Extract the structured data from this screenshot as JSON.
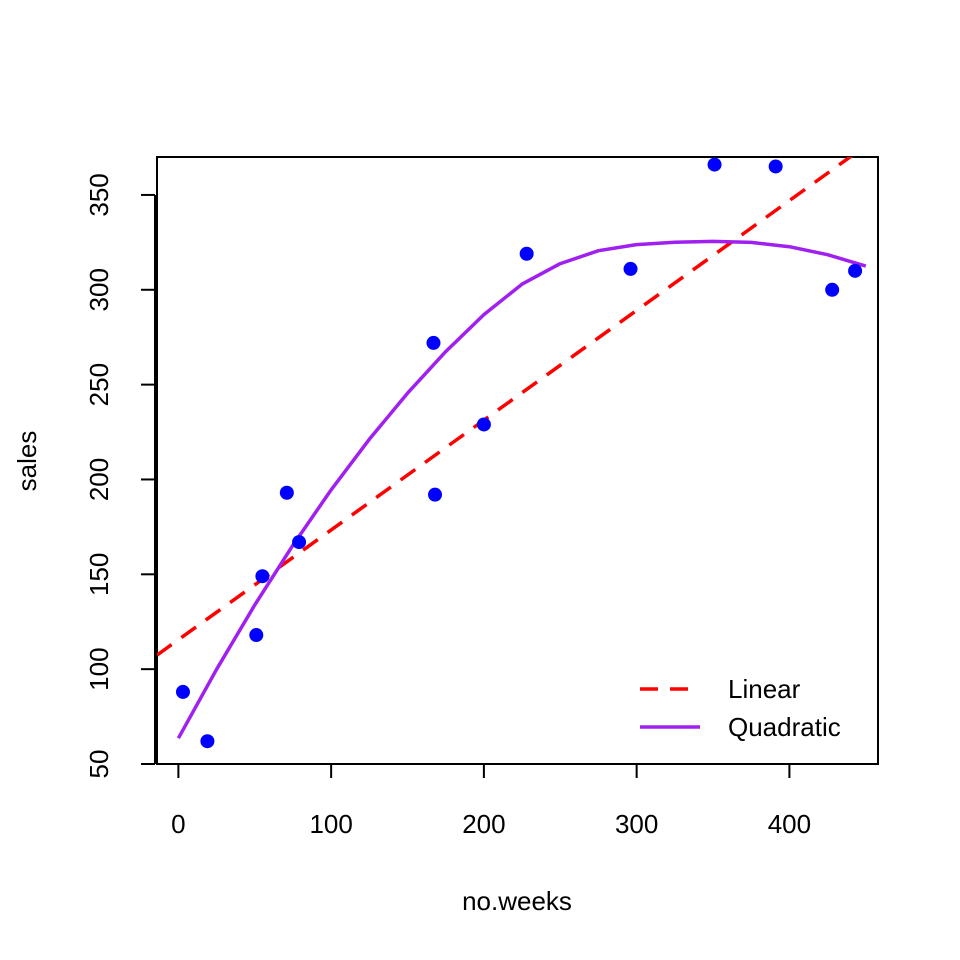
{
  "chart_data": {
    "type": "scatter",
    "title": "",
    "xlabel": "no.weeks",
    "ylabel": "sales",
    "xlim": [
      -14,
      458
    ],
    "ylim": [
      50,
      370
    ],
    "grid": false,
    "x_ticks": [
      {
        "value": 0,
        "label": "0"
      },
      {
        "value": 100,
        "label": "100"
      },
      {
        "value": 200,
        "label": "200"
      },
      {
        "value": 300,
        "label": "300"
      },
      {
        "value": 400,
        "label": "400"
      }
    ],
    "y_ticks": [
      {
        "value": 50,
        "label": "50"
      },
      {
        "value": 100,
        "label": "100"
      },
      {
        "value": 150,
        "label": "150"
      },
      {
        "value": 200,
        "label": "200"
      },
      {
        "value": 250,
        "label": "250"
      },
      {
        "value": 300,
        "label": "300"
      },
      {
        "value": 350,
        "label": "350"
      }
    ],
    "points": {
      "color": "#0000ff",
      "x": [
        3,
        19,
        51,
        55,
        71,
        79,
        167,
        168,
        200,
        228,
        296,
        351,
        391,
        428,
        443
      ],
      "y": [
        88,
        62,
        118,
        149,
        193,
        167,
        272,
        192,
        229,
        319,
        311,
        366,
        365,
        300,
        310
      ]
    },
    "lines": [
      {
        "name": "Linear",
        "color": "#ff0000",
        "dash": "dashed",
        "x": [
          -14,
          458
        ],
        "y": [
          107.4,
          380.6
        ]
      },
      {
        "name": "Quadratic",
        "color": "#a020f0",
        "dash": "solid",
        "x": [
          0,
          25,
          50,
          75,
          100,
          125,
          150,
          175,
          200,
          225,
          250,
          275,
          300,
          325,
          350,
          375,
          400,
          425,
          450
        ],
        "y": [
          63.6,
          99.9,
          133.9,
          165.4,
          194.5,
          221.2,
          245.5,
          267.4,
          286.9,
          303.0,
          313.8,
          320.6,
          323.8,
          325.1,
          325.5,
          325.0,
          322.7,
          318.5,
          312.5
        ]
      }
    ],
    "legend": {
      "position": "bottom-right",
      "entries": [
        {
          "label": "Linear",
          "color": "#ff0000",
          "dash": "dashed"
        },
        {
          "label": "Quadratic",
          "color": "#a020f0",
          "dash": "solid"
        }
      ]
    }
  }
}
